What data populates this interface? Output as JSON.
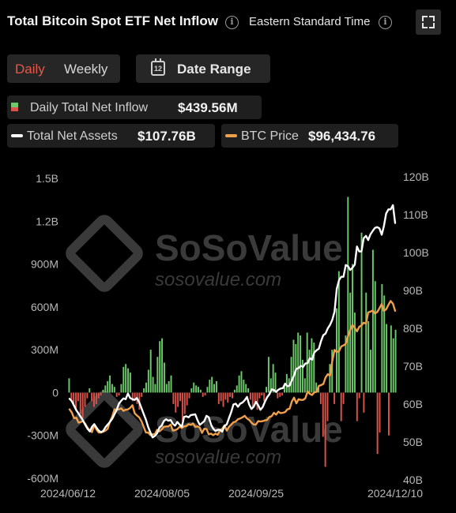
{
  "header": {
    "title": "Total Bitcoin Spot ETF Net Inflow",
    "timezone_label": "Eastern Standard Time"
  },
  "controls": {
    "period_options": [
      "Daily",
      "Weekly"
    ],
    "selected_period": "Daily",
    "date_range_label": "Date Range",
    "calendar_day": "12"
  },
  "legend": {
    "inflow": {
      "name": "Daily Total Net Inflow",
      "value": "$439.56M"
    },
    "assets": {
      "name": "Total Net Assets",
      "value": "$107.76B"
    },
    "btc": {
      "name": "BTC Price",
      "value": "$96,434.76"
    }
  },
  "watermark": {
    "brand": "SoSoValue",
    "url": "sosovalue.com"
  },
  "colors": {
    "inflow_positive": "#6cc86a",
    "inflow_negative": "#d9534a",
    "assets_line": "#ffffff",
    "btc_line": "#f0a04b",
    "background": "#000000"
  },
  "icons": [
    "info-icon",
    "expand-icon",
    "calendar-icon"
  ],
  "chart_data": {
    "type": "bar",
    "left_axis": {
      "ticks": [
        "1.5B",
        "1.2B",
        "900M",
        "600M",
        "300M",
        "0",
        "-300M",
        "-600M"
      ],
      "range": [
        -600,
        1500
      ],
      "unit": "M"
    },
    "right_axis": {
      "ticks": [
        "120B",
        "110B",
        "100B",
        "90B",
        "80B",
        "70B",
        "60B",
        "50B",
        "40B"
      ],
      "range": [
        40,
        120
      ],
      "unit": "B"
    },
    "x_tick_labels": [
      "2024/06/12",
      "2024/08/05",
      "2024/09/25",
      "2024/12/10"
    ],
    "x_start": "2024/06/12",
    "x_end": "2024/12/10",
    "series": [
      {
        "name": "Daily Total Net Inflow",
        "kind": "bar",
        "axis": "left",
        "values": [
          100,
          -50,
          -80,
          -120,
          -60,
          -150,
          -180,
          -100,
          -40,
          30,
          -60,
          -100,
          -80,
          -40,
          -20,
          20,
          50,
          80,
          120,
          60,
          40,
          -30,
          -20,
          60,
          180,
          200,
          170,
          140,
          -60,
          -40,
          -80,
          -120,
          -30,
          30,
          70,
          160,
          300,
          110,
          60,
          250,
          360,
          380,
          210,
          60,
          80,
          120,
          -80,
          -140,
          -100,
          -60,
          -200,
          -150,
          -90,
          -40,
          30,
          70,
          50,
          40,
          20,
          -30,
          -20,
          40,
          90,
          110,
          60,
          80,
          -80,
          -60,
          -100,
          -50,
          -70,
          -30,
          -40,
          20,
          50,
          120,
          150,
          90,
          60,
          30,
          -50,
          -100,
          -80,
          -120,
          -40,
          -20,
          -60,
          40,
          250,
          100,
          200,
          140,
          -40,
          -30,
          -20,
          50,
          130,
          100,
          250,
          370,
          340,
          420,
          400,
          230,
          100,
          420,
          300,
          380,
          350,
          70,
          40,
          -80,
          -310,
          -520,
          -200,
          200,
          300,
          -80,
          590,
          850,
          -200,
          -80,
          400,
          1370,
          700,
          900,
          560,
          -200,
          -40,
          1120,
          -140,
          700,
          500,
          300,
          1000,
          780,
          -430,
          -280,
          760,
          680,
          480,
          -300,
          470,
          380,
          440
        ],
        "color": "#6cc86a",
        "negative_color": "#d9534a"
      },
      {
        "name": "Total Net Assets",
        "kind": "line",
        "axis": "right",
        "values": [
          61.4,
          60.8,
          59.6,
          58.4,
          57.5,
          56.6,
          55.7,
          54.5,
          53.5,
          52.8,
          54.0,
          54.7,
          53.8,
          53.0,
          52.6,
          52.9,
          53.9,
          54.6,
          55.3,
          56.1,
          57.3,
          58.5,
          60.1,
          60.9,
          61.5,
          61.3,
          62.8,
          61.6,
          61.3,
          61.1,
          61.6,
          60.5,
          59.0,
          57.4,
          55.9,
          54.0,
          52.5,
          51.2,
          51.6,
          52.3,
          53.8,
          54.3,
          55.5,
          56.0,
          55.6,
          55.8,
          54.8,
          54.3,
          55.3,
          54.6,
          54.0,
          56.6,
          56.8,
          56.5,
          57.1,
          57.2,
          57.3,
          55.7,
          54.5,
          55.0,
          55.5,
          56.9,
          56.5,
          54.6,
          53.5,
          52.9,
          53.2,
          53.2,
          52.7,
          54.3,
          54.6,
          56.3,
          57.9,
          59.9,
          60.1,
          59.3,
          60.1,
          60.4,
          61.0,
          61.9,
          59.9,
          58.7,
          59.3,
          60.6,
          59.7,
          58.5,
          59.2,
          60.6,
          61.8,
          62.6,
          63.9,
          63.7,
          63.2,
          63.8,
          64.1,
          64.2,
          65.4,
          64.7,
          64.9,
          66.3,
          67.6,
          69.3,
          69.5,
          70.1,
          69.8,
          70.7,
          70.8,
          72.1,
          71.7,
          73.6,
          74.2,
          74.6,
          76.6,
          78.2,
          78.6,
          80.0,
          80.9,
          82.2,
          84.4,
          90.4,
          92.7,
          93.6,
          93.6,
          96.7,
          96.4,
          95.4,
          96.0,
          96.8,
          101.6,
          100.3,
          100.3,
          103.8,
          104.4,
          103.3,
          104.8,
          105.7,
          106.5,
          106.7,
          106.4,
          104.7,
          107.0,
          110.3,
          111.4,
          111.4,
          112.5,
          107.8
        ],
        "color": "#ffffff"
      },
      {
        "name": "BTC Price",
        "kind": "line",
        "axis": "right",
        "values": [
          58.6,
          57.8,
          56.3,
          56.4,
          55.1,
          55.3,
          55.5,
          54.8,
          53.8,
          53.0,
          52.6,
          54.5,
          53.3,
          52.5,
          52.5,
          52.7,
          53.0,
          53.5,
          55.4,
          56.7,
          58.6,
          58.5,
          58.6,
          58.9,
          58.2,
          58.5,
          58.6,
          59.0,
          59.7,
          57.6,
          57.0,
          56.5,
          55.5,
          54.0,
          52.5,
          52.5,
          51.8,
          52.0,
          52.1,
          53.2,
          52.8,
          53.3,
          54.0,
          54.1,
          54.1,
          54.6,
          53.0,
          53.1,
          53.4,
          54.0,
          53.7,
          54.1,
          54.2,
          54.7,
          54.5,
          54.9,
          54.0,
          54.1,
          53.8,
          52.4,
          53.5,
          53.4,
          52.0,
          52.2,
          51.8,
          52.2,
          51.9,
          53.1,
          53.5,
          54.4,
          53.0,
          54.0,
          54.6,
          55.2,
          55.4,
          56.0,
          56.2,
          56.5,
          56.9,
          56.2,
          55.8,
          55.1,
          54.6,
          54.6,
          55.5,
          55.4,
          55.5,
          55.7,
          55.8,
          56.6,
          56.8,
          57.7,
          57.2,
          58.0,
          57.6,
          57.7,
          57.9,
          58.6,
          58.8,
          60.7,
          61.7,
          60.2,
          61.3,
          61.1,
          61.1,
          61.5,
          63.3,
          62.7,
          62.4,
          63.1,
          63.2,
          64.8,
          65.0,
          65.3,
          67.0,
          67.9,
          67.5,
          71.3,
          74.3,
          73.7,
          74.0,
          75.2,
          75.5,
          75.9,
          77.8,
          79.6,
          80.9,
          80.1,
          79.2,
          80.4,
          80.8,
          81.5,
          81.2,
          84.2,
          84.4,
          84.7,
          83.9,
          84.3,
          85.3,
          86.4,
          84.6,
          85.0,
          86.2,
          87.2,
          86.5,
          84.6
        ],
        "color": "#f0a04b"
      }
    ]
  }
}
